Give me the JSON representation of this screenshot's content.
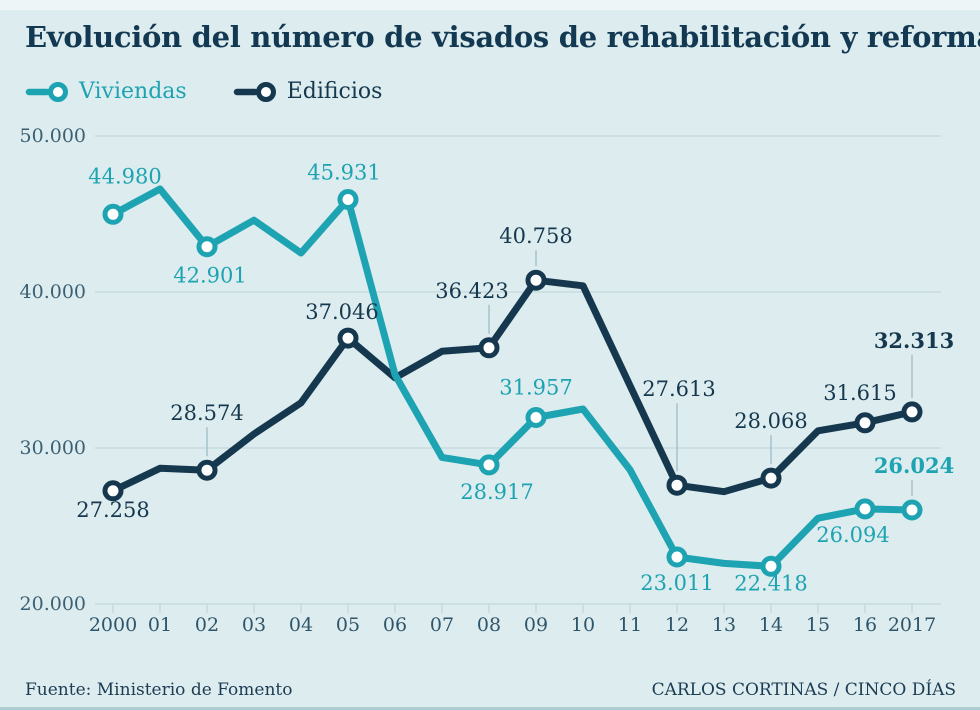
{
  "title": "Evolución del número de visados de rehabilitación y reforma",
  "colors": {
    "background": "#dcecef",
    "top_strip": "#edf5f6",
    "bottom_edge": "#b0ccd3",
    "title_text": "#123951",
    "grid": "#c2d7db",
    "leader": "#a7c2ca",
    "y_axis_text": "#3c6073",
    "x_axis_text": "#2e556a",
    "footer_text": "#1c3c52",
    "viviendas": "#1da3b1",
    "edificios": "#16384e",
    "marker_fill": "#ffffff"
  },
  "legend": [
    {
      "label": "Viviendas",
      "series": "viviendas"
    },
    {
      "label": "Edificios",
      "series": "edificios"
    }
  ],
  "footer": {
    "source": "Fuente: Ministerio de Fomento",
    "credit": "CARLOS CORTINAS / CINCO DÍAS"
  },
  "chart_data": {
    "type": "line",
    "title": "Evolución del número de visados de rehabilitación y reforma",
    "x": [
      "2000",
      "01",
      "02",
      "03",
      "04",
      "05",
      "06",
      "07",
      "08",
      "09",
      "10",
      "11",
      "12",
      "13",
      "14",
      "15",
      "16",
      "2017"
    ],
    "ylim": [
      20000,
      50000
    ],
    "yticks": [
      50000,
      40000,
      30000,
      20000
    ],
    "ytick_labels": [
      "50.000",
      "40.000",
      "30.000",
      "20.000"
    ],
    "grid": true,
    "legend_position": "top-left",
    "series": [
      {
        "name": "Edificios",
        "color": "#16384e",
        "values": [
          27258,
          28700,
          28574,
          30900,
          32900,
          37046,
          34500,
          36200,
          36423,
          40758,
          40400,
          34000,
          27613,
          27200,
          28068,
          31100,
          31615,
          32313
        ],
        "labels": [
          {
            "i": 0,
            "text": "27.258",
            "dx": 0,
            "dy": 26,
            "leader": false,
            "bold": false
          },
          {
            "i": 2,
            "text": "28.574",
            "dx": 0,
            "dy": -50,
            "leader": true,
            "bold": false
          },
          {
            "i": 5,
            "text": "37.046",
            "dx": -6,
            "dy": -19,
            "leader": false,
            "bold": false
          },
          {
            "i": 8,
            "text": "36.423",
            "dx": -17,
            "dy": -50,
            "leader": true,
            "bold": false
          },
          {
            "i": 9,
            "text": "40.758",
            "dx": 0,
            "dy": -37,
            "leader": true,
            "bold": false
          },
          {
            "i": 12,
            "text": "27.613",
            "dx": 2,
            "dy": -89,
            "leader": true,
            "bold": false
          },
          {
            "i": 14,
            "text": "28.068",
            "dx": 0,
            "dy": -50,
            "leader": true,
            "bold": false
          },
          {
            "i": 16,
            "text": "31.615",
            "dx": -5,
            "dy": -23,
            "leader": false,
            "bold": false
          },
          {
            "i": 17,
            "text": "32.313",
            "dx": 2,
            "dy": -64,
            "leader": true,
            "bold": true
          }
        ]
      },
      {
        "name": "Viviendas",
        "color": "#1da3b1",
        "values": [
          44980,
          46600,
          42901,
          44600,
          42500,
          45931,
          34700,
          29400,
          28917,
          31957,
          32500,
          28600,
          23011,
          22600,
          22418,
          25500,
          26094,
          26024
        ],
        "labels": [
          {
            "i": 0,
            "text": "44.980",
            "dx": 12,
            "dy": -31,
            "leader": false,
            "bold": false
          },
          {
            "i": 2,
            "text": "42.901",
            "dx": 3,
            "dy": 36,
            "leader": false,
            "bold": false
          },
          {
            "i": 5,
            "text": "45.931",
            "dx": -4,
            "dy": -20,
            "leader": false,
            "bold": false
          },
          {
            "i": 8,
            "text": "28.917",
            "dx": 8,
            "dy": 34,
            "leader": false,
            "bold": false
          },
          {
            "i": 9,
            "text": "31.957",
            "dx": 0,
            "dy": -23,
            "leader": false,
            "bold": false
          },
          {
            "i": 12,
            "text": "23.011",
            "dx": 0,
            "dy": 33,
            "leader": false,
            "bold": false
          },
          {
            "i": 14,
            "text": "22.418",
            "dx": 0,
            "dy": 24,
            "leader": false,
            "bold": false
          },
          {
            "i": 16,
            "text": "26.094",
            "dx": -12,
            "dy": 33,
            "leader": false,
            "bold": false
          },
          {
            "i": 17,
            "text": "26.024",
            "dx": 2,
            "dy": -37,
            "leader": true,
            "bold": true
          }
        ]
      }
    ],
    "marker_indices": [
      0,
      2,
      5,
      8,
      9,
      12,
      14,
      16,
      17
    ]
  }
}
